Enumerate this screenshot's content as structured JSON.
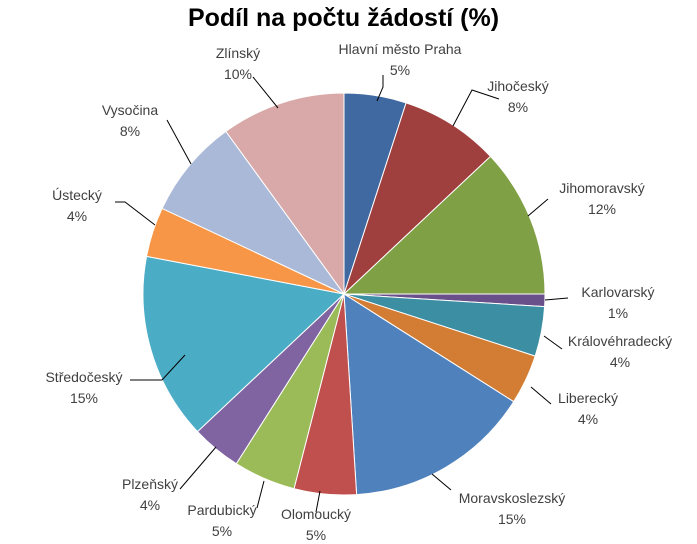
{
  "chart_data": {
    "type": "pie",
    "title": "Podíl na počtu žádostí (%)",
    "legend": "none",
    "slices": [
      {
        "label": "Hlavní město Praha",
        "value": 5,
        "display": "5%",
        "color": "#4169a1"
      },
      {
        "label": "Jihočeský",
        "value": 8,
        "display": "8%",
        "color": "#a0403e"
      },
      {
        "label": "Jihomoravský",
        "value": 12,
        "display": "12%",
        "color": "#80a046"
      },
      {
        "label": "Karlovarský",
        "value": 1,
        "display": "1%",
        "color": "#6a508a"
      },
      {
        "label": "Královéhradecký",
        "value": 4,
        "display": "4%",
        "color": "#3c8ea2"
      },
      {
        "label": "Liberecký",
        "value": 4,
        "display": "4%",
        "color": "#d37d34"
      },
      {
        "label": "Moravskoslezský",
        "value": 15,
        "display": "15%",
        "color": "#4f81bd"
      },
      {
        "label": "Olomoucký",
        "value": 5,
        "display": "5%",
        "color": "#c0504d"
      },
      {
        "label": "Pardubický",
        "value": 5,
        "display": "5%",
        "color": "#9bbb59"
      },
      {
        "label": "Plzeňský",
        "value": 4,
        "display": "4%",
        "color": "#8064a2"
      },
      {
        "label": "Středočeský",
        "value": 15,
        "display": "15%",
        "color": "#4bacc6"
      },
      {
        "label": "Ústecký",
        "value": 4,
        "display": "4%",
        "color": "#f79646"
      },
      {
        "label": "Vysočina",
        "value": 8,
        "display": "8%",
        "color": "#aab9d8"
      },
      {
        "label": "Zlínský",
        "value": 10,
        "display": "10%",
        "color": "#d9a9a9"
      }
    ]
  }
}
